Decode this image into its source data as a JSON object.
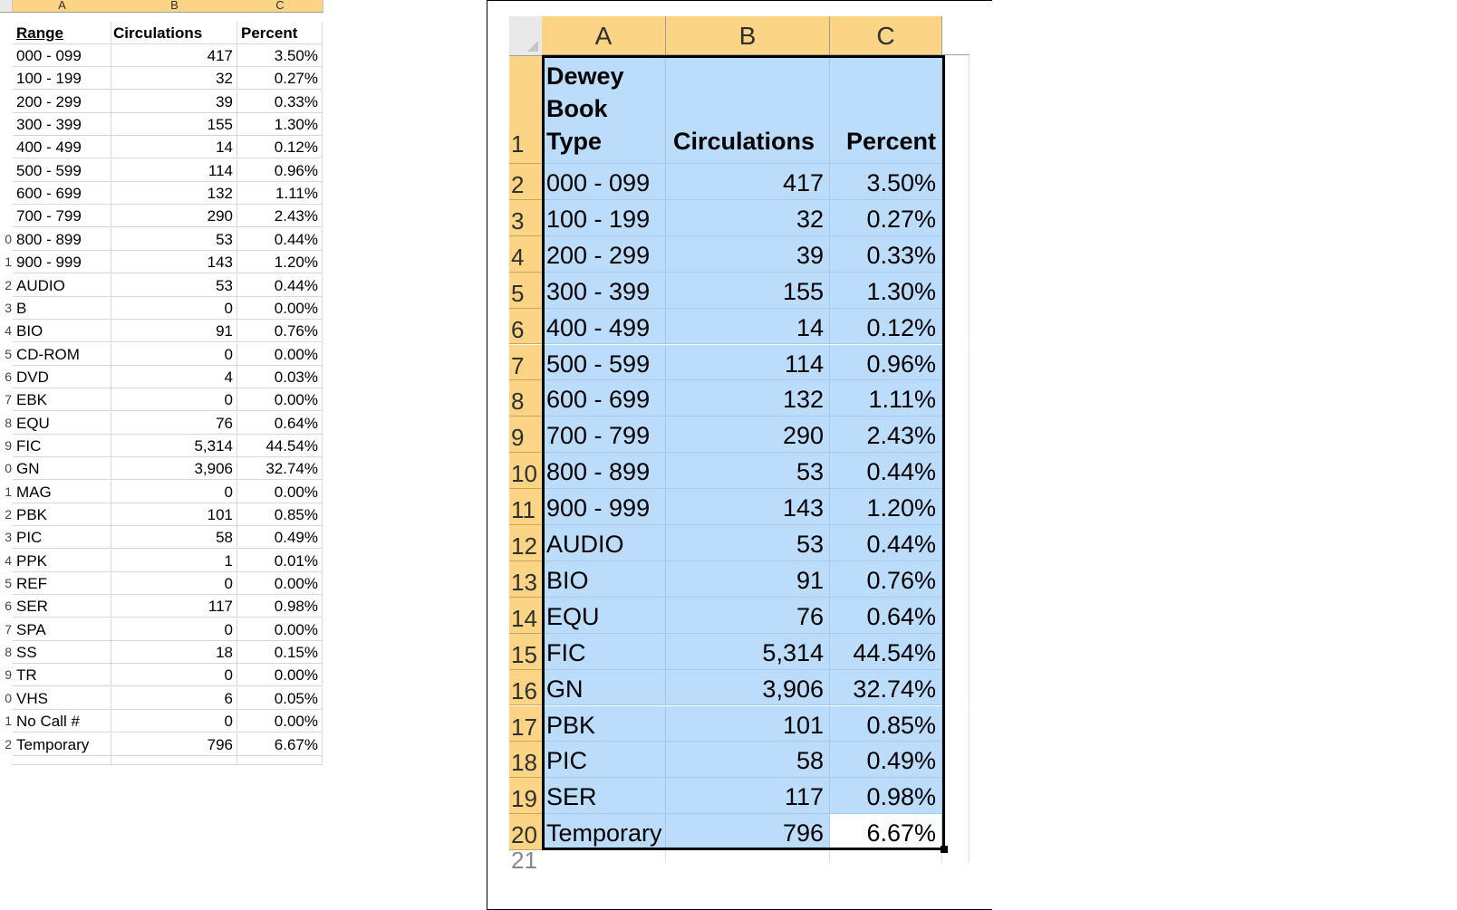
{
  "left_sheet": {
    "column_headers": [
      "A",
      "B",
      "C"
    ],
    "header_row": {
      "range": "Range",
      "circulations": "Circulations",
      "percent": "Percent"
    },
    "row_numbers": [
      "",
      "",
      "",
      "",
      "",
      "",
      "",
      "",
      "",
      "0",
      "1",
      "2",
      "3",
      "4",
      "5",
      "6",
      "7",
      "8",
      "9",
      "0",
      "1",
      "2",
      "3",
      "4",
      "5",
      "6",
      "7",
      "8",
      "9",
      "0",
      "1",
      "2"
    ],
    "rows": [
      [
        "000 - 099",
        "417",
        "3.50%"
      ],
      [
        "100 - 199",
        "32",
        "0.27%"
      ],
      [
        "200 - 299",
        "39",
        "0.33%"
      ],
      [
        "300 - 399",
        "155",
        "1.30%"
      ],
      [
        "400 - 499",
        "14",
        "0.12%"
      ],
      [
        "500 - 599",
        "114",
        "0.96%"
      ],
      [
        "600 - 699",
        "132",
        "1.11%"
      ],
      [
        "700 - 799",
        "290",
        "2.43%"
      ],
      [
        "800 - 899",
        "53",
        "0.44%"
      ],
      [
        "900 - 999",
        "143",
        "1.20%"
      ],
      [
        "AUDIO",
        "53",
        "0.44%"
      ],
      [
        "B",
        "0",
        "0.00%"
      ],
      [
        "BIO",
        "91",
        "0.76%"
      ],
      [
        "CD-ROM",
        "0",
        "0.00%"
      ],
      [
        "DVD",
        "4",
        "0.03%"
      ],
      [
        "EBK",
        "0",
        "0.00%"
      ],
      [
        "EQU",
        "76",
        "0.64%"
      ],
      [
        "FIC",
        "5,314",
        "44.54%"
      ],
      [
        "GN",
        "3,906",
        "32.74%"
      ],
      [
        "MAG",
        "0",
        "0.00%"
      ],
      [
        "PBK",
        "101",
        "0.85%"
      ],
      [
        "PIC",
        "58",
        "0.49%"
      ],
      [
        "PPK",
        "1",
        "0.01%"
      ],
      [
        "REF",
        "0",
        "0.00%"
      ],
      [
        "SER",
        "117",
        "0.98%"
      ],
      [
        "SPA",
        "0",
        "0.00%"
      ],
      [
        "SS",
        "18",
        "0.15%"
      ],
      [
        "TR",
        "0",
        "0.00%"
      ],
      [
        "VHS",
        "6",
        "0.05%"
      ],
      [
        "No Call #",
        "0",
        "0.00%"
      ],
      [
        "Temporary",
        "796",
        "6.67%"
      ]
    ]
  },
  "right_sheet": {
    "column_headers": [
      "A",
      "B",
      "C"
    ],
    "header_row": {
      "number": "1",
      "type_lines": [
        "Dewey",
        "Book",
        "Type"
      ],
      "circulations": "Circulations",
      "percent": "Percent"
    },
    "rows": [
      [
        "2",
        "000 - 099",
        "417",
        "3.50%"
      ],
      [
        "3",
        "100 - 199",
        "32",
        "0.27%"
      ],
      [
        "4",
        "200 - 299",
        "39",
        "0.33%"
      ],
      [
        "5",
        "300 - 399",
        "155",
        "1.30%"
      ],
      [
        "6",
        "400 - 499",
        "14",
        "0.12%"
      ],
      [
        "7",
        "500 - 599",
        "114",
        "0.96%"
      ],
      [
        "8",
        "600 - 699",
        "132",
        "1.11%"
      ],
      [
        "9",
        "700 - 799",
        "290",
        "2.43%"
      ],
      [
        "10",
        "800 - 899",
        "53",
        "0.44%"
      ],
      [
        "11",
        "900 - 999",
        "143",
        "1.20%"
      ],
      [
        "12",
        "AUDIO",
        "53",
        "0.44%"
      ],
      [
        "13",
        "BIO",
        "91",
        "0.76%"
      ],
      [
        "14",
        "EQU",
        "76",
        "0.64%"
      ],
      [
        "15",
        "FIC",
        "5,314",
        "44.54%"
      ],
      [
        "16",
        "GN",
        "3,906",
        "32.74%"
      ],
      [
        "17",
        "PBK",
        "101",
        "0.85%"
      ],
      [
        "18",
        "PIC",
        "58",
        "0.49%"
      ],
      [
        "19",
        "SER",
        "117",
        "0.98%"
      ],
      [
        "20",
        "Temporary",
        "796",
        "6.67%"
      ]
    ],
    "next_row_number": "21"
  },
  "colors": {
    "header_bg": "#fbd485",
    "selection_bg": "#bcdcfb"
  }
}
